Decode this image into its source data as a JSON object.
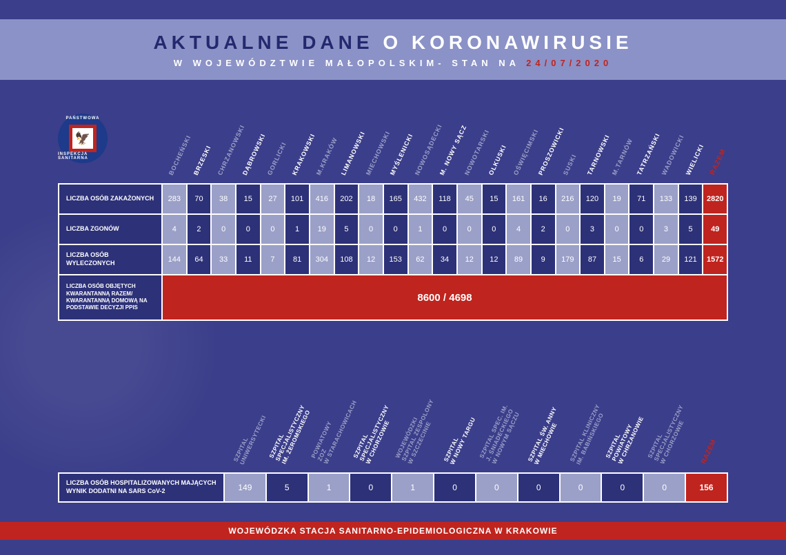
{
  "header": {
    "title_accent": "AKTUALNE DANE",
    "title_rest": " O KORONAWIRUSIE",
    "subtitle_prefix": "W WOJEWÓDZTWIE MAŁOPOLSKIM- STAN NA ",
    "date": "24/07/2020"
  },
  "logo": {
    "top": "PAŃSTWOWA",
    "bottom": "INSPEKCJA SANITARNA"
  },
  "table1": {
    "columns": [
      {
        "label": "BOCHEŃSKI",
        "hl": false
      },
      {
        "label": "BRZESKI",
        "hl": true
      },
      {
        "label": "CHRZANOWSKI",
        "hl": false
      },
      {
        "label": "DĄBROWSKI",
        "hl": true
      },
      {
        "label": "GORLICKI",
        "hl": false
      },
      {
        "label": "KRAKOWSKI",
        "hl": true
      },
      {
        "label": "M.KRAKÓW",
        "hl": false
      },
      {
        "label": "LIMANOWSKI",
        "hl": true
      },
      {
        "label": "MIECHOWSKI",
        "hl": false
      },
      {
        "label": "MYŚLENICKI",
        "hl": true
      },
      {
        "label": "NOWOSĄDECKI",
        "hl": false
      },
      {
        "label": "M. NOWY SĄCZ",
        "hl": true
      },
      {
        "label": "NOWOTARSKI",
        "hl": false
      },
      {
        "label": "OLKUSKI",
        "hl": true
      },
      {
        "label": "OŚWIĘCIMSKI",
        "hl": false
      },
      {
        "label": "PROSZOWICKI",
        "hl": true
      },
      {
        "label": "SUSKI",
        "hl": false
      },
      {
        "label": "TARNOWSKI",
        "hl": true
      },
      {
        "label": "M.TARNÓW",
        "hl": false
      },
      {
        "label": "TATRZAŃSKI",
        "hl": true
      },
      {
        "label": "WADOWICKI",
        "hl": false
      },
      {
        "label": "WIELICKI",
        "hl": true
      }
    ],
    "total_label": "RAZEM",
    "rows": [
      {
        "label": "LICZBA OSÓB ZAKAŻONYCH",
        "values": [
          283,
          70,
          38,
          15,
          27,
          101,
          416,
          202,
          18,
          165,
          432,
          118,
          45,
          15,
          161,
          16,
          216,
          120,
          19,
          71,
          133,
          139
        ],
        "total": 2820
      },
      {
        "label": "LICZBA ZGONÓW",
        "values": [
          4,
          2,
          0,
          0,
          0,
          1,
          19,
          5,
          0,
          0,
          1,
          0,
          0,
          0,
          4,
          2,
          0,
          3,
          0,
          0,
          3,
          5
        ],
        "total": 49
      },
      {
        "label": "LICZBA OSÓB WYLECZONYCH",
        "values": [
          144,
          64,
          33,
          11,
          7,
          81,
          304,
          108,
          12,
          153,
          62,
          34,
          12,
          12,
          89,
          9,
          179,
          87,
          15,
          6,
          29,
          121
        ],
        "total": 1572
      }
    ],
    "quarantine": {
      "label": "LICZBA OSÓB OBJĘTYCH KWARANTANNĄ RAZEM/ KWARANTANNĄ DOMOWĄ NA PODSTAWIE DECYZJI PPIS",
      "value": "8600 / 4698"
    }
  },
  "table2": {
    "columns": [
      {
        "label": "SZPITAL\nUNIWERSYTECKI",
        "hl": false
      },
      {
        "label": "SZPITAL\nSPECJALISTYCZNY\nIM. ŻEROMSKIEGO",
        "hl": true
      },
      {
        "label": "POWIATOWY\nZOZ\nW STARACHOWICACH",
        "hl": false
      },
      {
        "label": "SZPITAL\nSPECJALISTYCZNY\nW CHORZOWIE",
        "hl": true
      },
      {
        "label": "WOJEWÓDZKI\nSZPITAL ZESPOLONY\nW SZCZECINIE",
        "hl": false
      },
      {
        "label": "SZPITAL\nW NOWY TARGU",
        "hl": true
      },
      {
        "label": "SZPITAL SPEC. IM.\nJ. ŚNIADECKIEGO\nW NOWYM SĄCZU",
        "hl": false
      },
      {
        "label": "SZPITAL ŚW. ANNY\nW MIECHOWIE",
        "hl": true
      },
      {
        "label": "SZPITAL KLINICZNY\nIM. BABIŃSKIEGO",
        "hl": false
      },
      {
        "label": "SZPITAL\nPOWIATOWY\nW CHRZANOWIE",
        "hl": true
      },
      {
        "label": "SZPITAL\nSPECJALISTYCZNY\nW CHORZOWIE",
        "hl": false
      }
    ],
    "total_label": "RAZEM",
    "row": {
      "label": "LICZBA OSÓB HOSPITALIZOWANYCH MAJĄCYCH WYNIK DODATNI NA SARS CoV-2",
      "values": [
        149,
        5,
        1,
        0,
        1,
        0,
        0,
        0,
        0,
        0,
        0
      ],
      "total": 156
    }
  },
  "footer": "WOJEWÓDZKA STACJA SANITARNO-EPIDEMIOLOGICZNA W KRAKOWIE"
}
